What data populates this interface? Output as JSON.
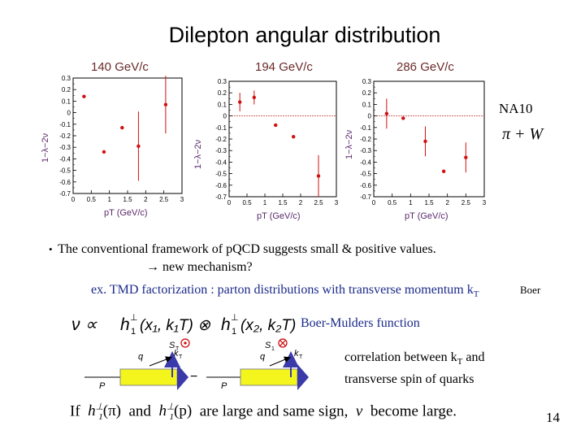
{
  "slide": {
    "title": "Dilepton angular distribution",
    "na10_label": "NA10",
    "process_label": "π + W",
    "bullet1": "The conventional framework of pQCD suggests small & positive values.",
    "bullet1_cont": "→ new mechanism?",
    "example_prefix": "ex. TMD factorization : parton distributions with transverse momentum k",
    "example_sub": "T",
    "boer_tag": "Boer",
    "formula_name": "Boer-Mulders function",
    "correlation_line1_prefix": "correlation between k",
    "correlation_line1_sub": "T",
    "correlation_line1_suffix": " and",
    "correlation_line2": "transverse spin of quarks",
    "last_line_if": "If",
    "last_line_and": "and",
    "last_line_suffix": "are large and same sign,",
    "last_line_end": "become large.",
    "page_number": "14"
  },
  "formula": {
    "nu": "ν ∝",
    "h1_left": "h",
    "args1": "(x₁, k₁T) ⊗",
    "h1_right": "h",
    "args2": "(x₂, k₂T)",
    "minus": "−",
    "diagram_labels": {
      "P1": "P",
      "P2": "P",
      "ST": "S",
      "ST_sub": "T",
      "q1": "q",
      "q2": "q",
      "kT1": "k",
      "kT1_sub": "T",
      "kT2": "k",
      "kT2_sub": "T"
    },
    "h_pi": "h",
    "h_pi_arg": "(π)",
    "h_p": "h",
    "h_p_arg": "(p)",
    "nu2": "ν"
  },
  "chart_data": [
    {
      "type": "scatter",
      "title": "140 GeV/c",
      "xlabel": "pT (GeV/c)",
      "ylabel": "1−λ−2ν",
      "xlim": [
        0,
        3
      ],
      "ylim": [
        -0.7,
        0.3
      ],
      "xticks": [
        "0",
        "0.5",
        "1",
        "1.5",
        "2",
        "2.5",
        "3"
      ],
      "yticks": [
        "0.3",
        "0.2",
        "0.1",
        "0",
        "-0.1",
        "-0.2",
        "-0.3",
        "-0.4",
        "-0.5",
        "-0.6",
        "-0.7"
      ],
      "points": [
        {
          "x": 0.3,
          "y": 0.14,
          "err": 0.0
        },
        {
          "x": 0.85,
          "y": -0.34,
          "err": 0.0
        },
        {
          "x": 1.35,
          "y": -0.13,
          "err": 0.0
        },
        {
          "x": 1.8,
          "y": -0.29,
          "err": 0.3
        },
        {
          "x": 2.55,
          "y": 0.07,
          "err": 0.25
        }
      ]
    },
    {
      "type": "scatter",
      "title": "194 GeV/c",
      "xlabel": "pT (GeV/c)",
      "ylabel": "1−λ−2ν",
      "xlim": [
        0,
        3
      ],
      "ylim": [
        -0.7,
        0.3
      ],
      "xticks": [
        "0",
        "0.5",
        "1",
        "1.5",
        "2",
        "2.5",
        "3"
      ],
      "yticks": [
        "0.3",
        "0.2",
        "0.1",
        "0",
        "-0.1",
        "-0.2",
        "-0.3",
        "-0.4",
        "-0.5",
        "-0.6",
        "-0.7"
      ],
      "points": [
        {
          "x": 0.3,
          "y": 0.12,
          "err": 0.08
        },
        {
          "x": 0.7,
          "y": 0.16,
          "err": 0.06
        },
        {
          "x": 1.3,
          "y": -0.08,
          "err": 0.0
        },
        {
          "x": 1.8,
          "y": -0.18,
          "err": 0.0
        },
        {
          "x": 2.5,
          "y": -0.52,
          "err": 0.18
        }
      ]
    },
    {
      "type": "scatter",
      "title": "286 GeV/c",
      "xlabel": "pT (GeV/c)",
      "ylabel": "1−λ−2ν",
      "xlim": [
        0,
        3
      ],
      "ylim": [
        -0.7,
        0.3
      ],
      "xticks": [
        "0",
        "0.5",
        "1",
        "1.5",
        "2",
        "2.5",
        "3"
      ],
      "yticks": [
        "0.3",
        "0.2",
        "0.1",
        "0",
        "-0.1",
        "-0.2",
        "-0.3",
        "-0.4",
        "-0.5",
        "-0.6",
        "-0.7"
      ],
      "points": [
        {
          "x": 0.35,
          "y": 0.02,
          "err": 0.13
        },
        {
          "x": 0.8,
          "y": -0.02,
          "err": 0.0
        },
        {
          "x": 1.4,
          "y": -0.22,
          "err": 0.13
        },
        {
          "x": 1.9,
          "y": -0.48,
          "err": 0.0
        },
        {
          "x": 2.5,
          "y": -0.36,
          "err": 0.13
        }
      ]
    }
  ]
}
